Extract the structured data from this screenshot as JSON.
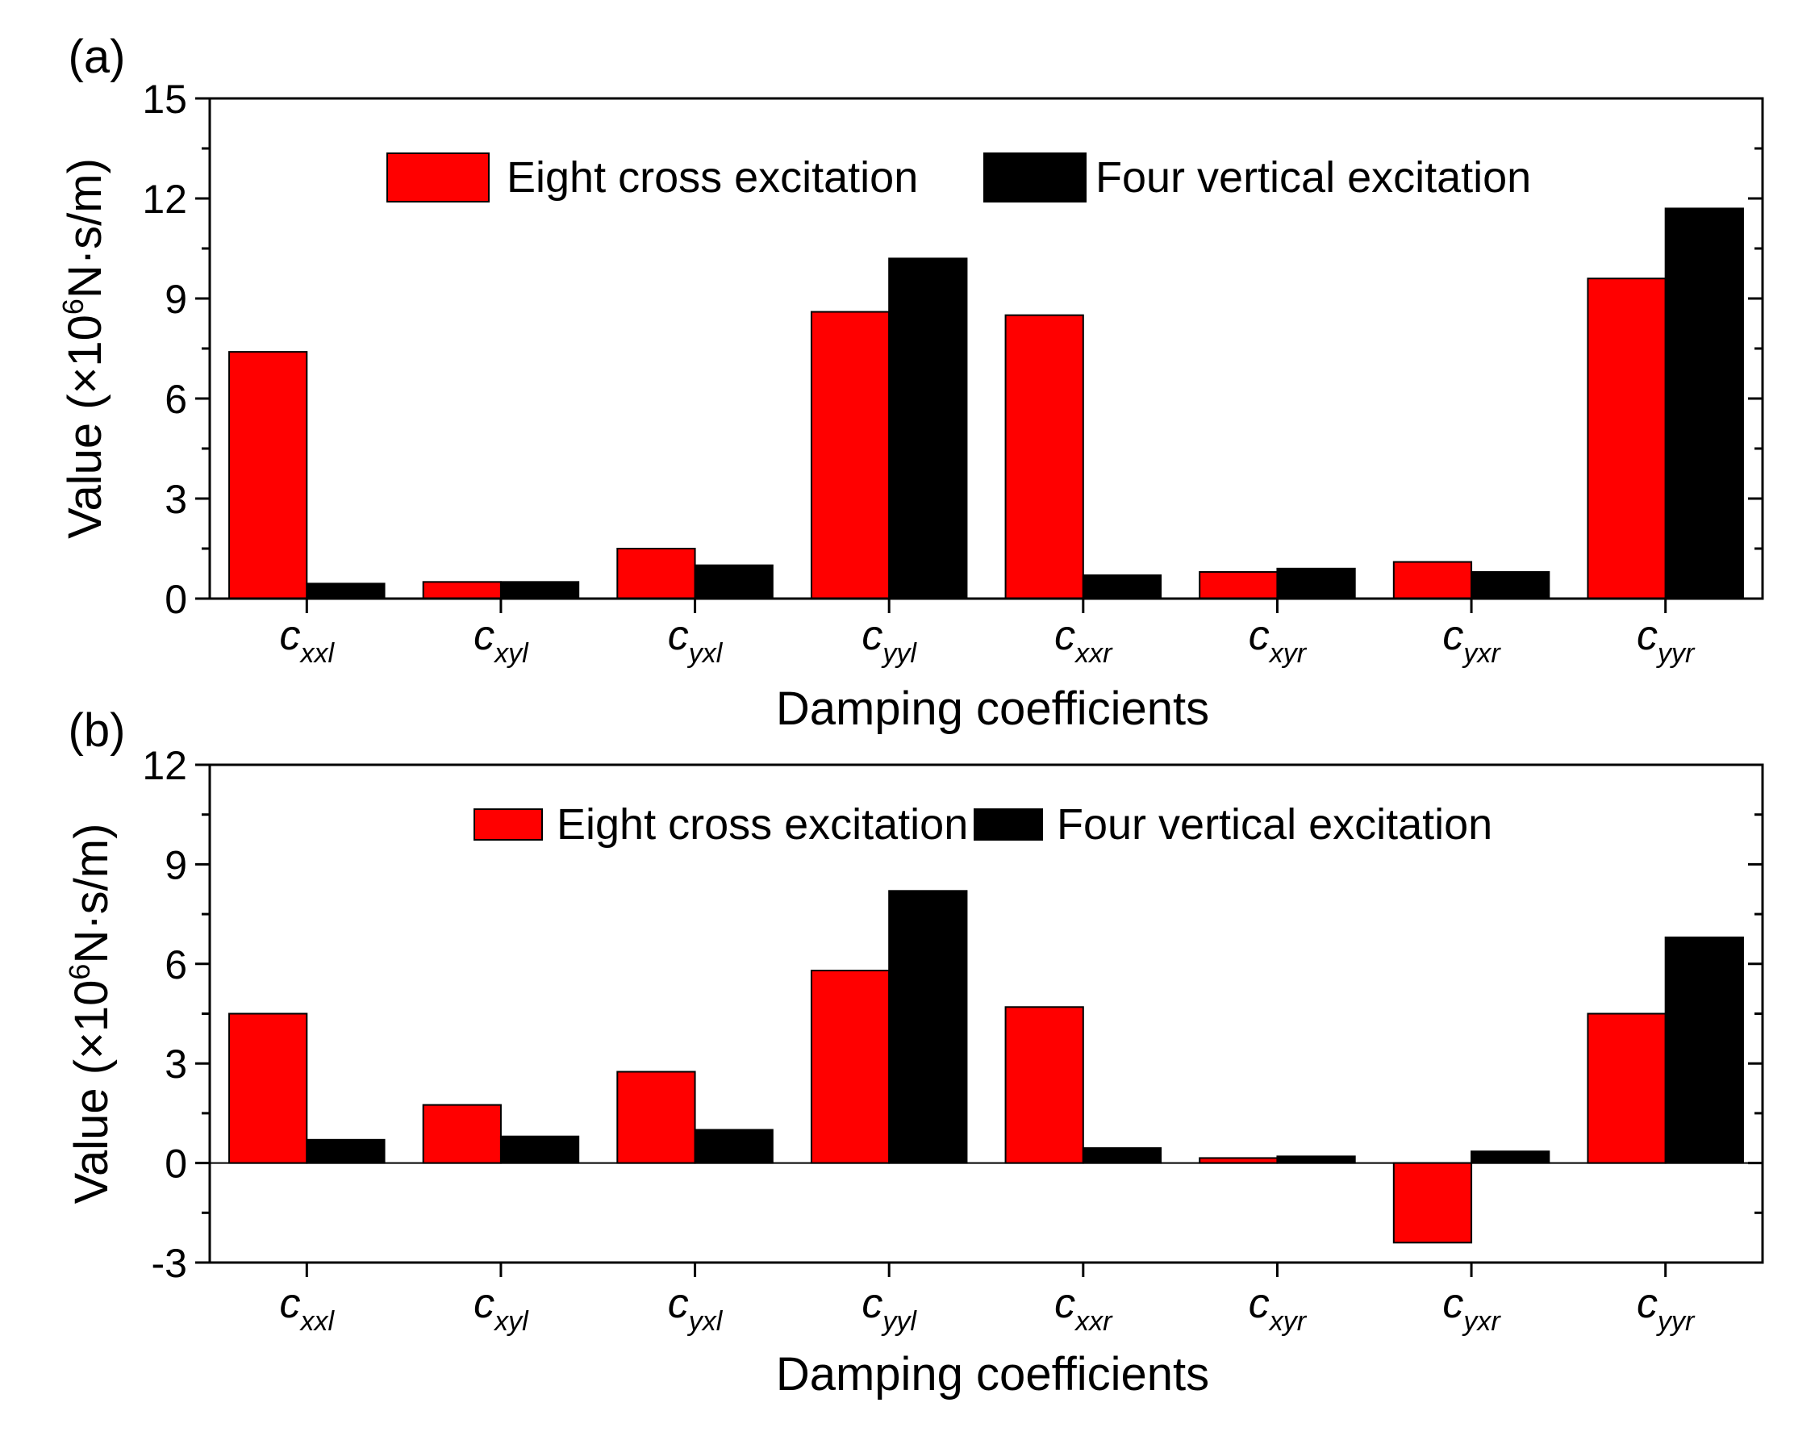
{
  "chart_data": [
    {
      "panel_label": "(a)",
      "type": "bar",
      "ylabel": {
        "text": "Value (×10",
        "sup": "6",
        "unit": "N·s/m)"
      },
      "xlabel": "Damping coefficients",
      "ylim": [
        0,
        15
      ],
      "yticks": [
        "0",
        "3",
        "6",
        "9",
        "12",
        "15"
      ],
      "categories": [
        {
          "base": "c",
          "sub": "xxl"
        },
        {
          "base": "c",
          "sub": "xyl"
        },
        {
          "base": "c",
          "sub": "yxl"
        },
        {
          "base": "c",
          "sub": "yyl"
        },
        {
          "base": "c",
          "sub": "xxr"
        },
        {
          "base": "c",
          "sub": "xyr"
        },
        {
          "base": "c",
          "sub": "yxr"
        },
        {
          "base": "c",
          "sub": "yyr"
        }
      ],
      "series": [
        {
          "name": "Eight cross excitation",
          "color": "#ff0000",
          "values": [
            7.4,
            0.5,
            1.5,
            8.6,
            8.5,
            0.8,
            1.1,
            9.6
          ]
        },
        {
          "name": "Four vertical excitation",
          "color": "#000000",
          "values": [
            0.45,
            0.5,
            1.0,
            10.2,
            0.7,
            0.9,
            0.8,
            11.7
          ]
        }
      ],
      "legend_position": "top-center"
    },
    {
      "panel_label": "(b)",
      "type": "bar",
      "ylabel": {
        "text": "Value (×10",
        "sup": "6",
        "unit": "N·s/m)"
      },
      "xlabel": "Damping coefficients",
      "ylim": [
        -3,
        12
      ],
      "yticks": [
        "-3",
        "0",
        "3",
        "6",
        "9",
        "12"
      ],
      "categories": [
        {
          "base": "c",
          "sub": "xxl"
        },
        {
          "base": "c",
          "sub": "xyl"
        },
        {
          "base": "c",
          "sub": "yxl"
        },
        {
          "base": "c",
          "sub": "yyl"
        },
        {
          "base": "c",
          "sub": "xxr"
        },
        {
          "base": "c",
          "sub": "xyr"
        },
        {
          "base": "c",
          "sub": "yxr"
        },
        {
          "base": "c",
          "sub": "yyr"
        }
      ],
      "series": [
        {
          "name": "Eight cross excitation",
          "color": "#ff0000",
          "values": [
            4.5,
            1.75,
            2.75,
            5.8,
            4.7,
            0.15,
            -2.4,
            4.5
          ]
        },
        {
          "name": "Four vertical excitation",
          "color": "#000000",
          "values": [
            0.7,
            0.8,
            1.0,
            8.2,
            0.45,
            0.2,
            0.35,
            6.8
          ]
        }
      ],
      "legend_position": "top-center"
    }
  ]
}
